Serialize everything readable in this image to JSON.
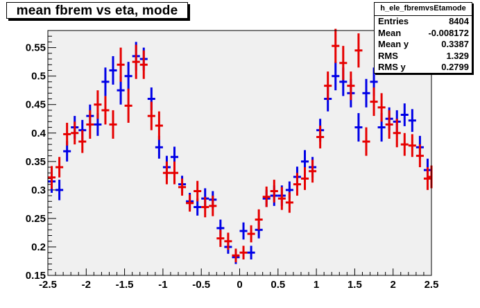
{
  "title": "mean fbrem vs eta, mode",
  "stats": {
    "name": "h_ele_fbremvsEtamode",
    "rows": [
      {
        "key": "Entries",
        "value": "8404"
      },
      {
        "key": "Mean",
        "value": "-0.008172"
      },
      {
        "key": "Mean y",
        "value": "0.3387"
      },
      {
        "key": "RMS",
        "value": "1.329"
      },
      {
        "key": "RMS y",
        "value": "0.2799"
      }
    ]
  },
  "colors": {
    "frame_bg": "#f0f0f0",
    "blue": "#0000e6",
    "red": "#e60000"
  },
  "chart_data": {
    "type": "scatter",
    "title": "mean fbrem vs eta, mode",
    "xlabel": "",
    "ylabel": "",
    "xlim": [
      -2.5,
      2.5
    ],
    "ylim": [
      0.15,
      0.58
    ],
    "x_ticks": [
      "-2.5",
      "-2",
      "-1.5",
      "-1",
      "-0.5",
      "0",
      "0.5",
      "1",
      "1.5",
      "2",
      "2.5"
    ],
    "y_ticks": [
      "0.15",
      "0.2",
      "0.25",
      "0.3",
      "0.35",
      "0.4",
      "0.45",
      "0.5",
      "0.55"
    ],
    "bin_half_width": 0.05,
    "series": [
      {
        "color": "#0000e6",
        "points": [
          {
            "x": -2.45,
            "y": 0.315,
            "err": 0.02
          },
          {
            "x": -2.35,
            "y": 0.3,
            "err": 0.018
          },
          {
            "x": -2.25,
            "y": 0.368,
            "err": 0.018
          },
          {
            "x": -2.15,
            "y": 0.41,
            "err": 0.02
          },
          {
            "x": -2.05,
            "y": 0.405,
            "err": 0.018
          },
          {
            "x": -1.95,
            "y": 0.43,
            "err": 0.02
          },
          {
            "x": -1.85,
            "y": 0.415,
            "err": 0.02
          },
          {
            "x": -1.75,
            "y": 0.49,
            "err": 0.025
          },
          {
            "x": -1.65,
            "y": 0.51,
            "err": 0.025
          },
          {
            "x": -1.55,
            "y": 0.475,
            "err": 0.025
          },
          {
            "x": -1.45,
            "y": 0.5,
            "err": 0.025
          },
          {
            "x": -1.35,
            "y": 0.535,
            "err": 0.025
          },
          {
            "x": -1.25,
            "y": 0.53,
            "err": 0.02
          },
          {
            "x": -1.15,
            "y": 0.46,
            "err": 0.02
          },
          {
            "x": -1.05,
            "y": 0.375,
            "err": 0.02
          },
          {
            "x": -0.95,
            "y": 0.34,
            "err": 0.02
          },
          {
            "x": -0.85,
            "y": 0.358,
            "err": 0.018
          },
          {
            "x": -0.75,
            "y": 0.31,
            "err": 0.015
          },
          {
            "x": -0.65,
            "y": 0.28,
            "err": 0.015
          },
          {
            "x": -0.55,
            "y": 0.27,
            "err": 0.015
          },
          {
            "x": -0.45,
            "y": 0.285,
            "err": 0.018
          },
          {
            "x": -0.35,
            "y": 0.283,
            "err": 0.015
          },
          {
            "x": -0.25,
            "y": 0.233,
            "err": 0.015
          },
          {
            "x": -0.15,
            "y": 0.2,
            "err": 0.012
          },
          {
            "x": -0.05,
            "y": 0.182,
            "err": 0.012
          },
          {
            "x": 0.05,
            "y": 0.228,
            "err": 0.015
          },
          {
            "x": 0.15,
            "y": 0.19,
            "err": 0.012
          },
          {
            "x": 0.25,
            "y": 0.23,
            "err": 0.015
          },
          {
            "x": 0.35,
            "y": 0.285,
            "err": 0.015
          },
          {
            "x": 0.45,
            "y": 0.29,
            "err": 0.018
          },
          {
            "x": 0.55,
            "y": 0.29,
            "err": 0.018
          },
          {
            "x": 0.65,
            "y": 0.3,
            "err": 0.015
          },
          {
            "x": 0.75,
            "y": 0.323,
            "err": 0.018
          },
          {
            "x": 0.85,
            "y": 0.35,
            "err": 0.02
          },
          {
            "x": 0.95,
            "y": 0.34,
            "err": 0.018
          },
          {
            "x": 1.05,
            "y": 0.405,
            "err": 0.02
          },
          {
            "x": 1.15,
            "y": 0.46,
            "err": 0.022
          },
          {
            "x": 1.25,
            "y": 0.5,
            "err": 0.025
          },
          {
            "x": 1.35,
            "y": 0.49,
            "err": 0.025
          },
          {
            "x": 1.45,
            "y": 0.47,
            "err": 0.025
          },
          {
            "x": 1.55,
            "y": 0.41,
            "err": 0.025
          },
          {
            "x": 1.65,
            "y": 0.47,
            "err": 0.025
          },
          {
            "x": 1.75,
            "y": 0.49,
            "err": 0.025
          },
          {
            "x": 1.85,
            "y": 0.41,
            "err": 0.025
          },
          {
            "x": 1.95,
            "y": 0.425,
            "err": 0.02
          },
          {
            "x": 2.05,
            "y": 0.42,
            "err": 0.02
          },
          {
            "x": 2.15,
            "y": 0.432,
            "err": 0.02
          },
          {
            "x": 2.25,
            "y": 0.422,
            "err": 0.02
          },
          {
            "x": 2.35,
            "y": 0.375,
            "err": 0.02
          },
          {
            "x": 2.45,
            "y": 0.335,
            "err": 0.02
          }
        ]
      },
      {
        "color": "#e60000",
        "points": [
          {
            "x": -2.45,
            "y": 0.322,
            "err": 0.02
          },
          {
            "x": -2.35,
            "y": 0.34,
            "err": 0.018
          },
          {
            "x": -2.25,
            "y": 0.398,
            "err": 0.02
          },
          {
            "x": -2.15,
            "y": 0.4,
            "err": 0.02
          },
          {
            "x": -2.05,
            "y": 0.385,
            "err": 0.02
          },
          {
            "x": -1.95,
            "y": 0.415,
            "err": 0.025
          },
          {
            "x": -1.85,
            "y": 0.45,
            "err": 0.025
          },
          {
            "x": -1.75,
            "y": 0.44,
            "err": 0.025
          },
          {
            "x": -1.65,
            "y": 0.415,
            "err": 0.025
          },
          {
            "x": -1.55,
            "y": 0.52,
            "err": 0.03
          },
          {
            "x": -1.45,
            "y": 0.448,
            "err": 0.03
          },
          {
            "x": -1.35,
            "y": 0.525,
            "err": 0.03
          },
          {
            "x": -1.25,
            "y": 0.52,
            "err": 0.025
          },
          {
            "x": -1.15,
            "y": 0.43,
            "err": 0.025
          },
          {
            "x": -1.05,
            "y": 0.413,
            "err": 0.025
          },
          {
            "x": -0.95,
            "y": 0.33,
            "err": 0.02
          },
          {
            "x": -0.85,
            "y": 0.33,
            "err": 0.02
          },
          {
            "x": -0.75,
            "y": 0.305,
            "err": 0.015
          },
          {
            "x": -0.65,
            "y": 0.277,
            "err": 0.015
          },
          {
            "x": -0.55,
            "y": 0.298,
            "err": 0.018
          },
          {
            "x": -0.45,
            "y": 0.27,
            "err": 0.018
          },
          {
            "x": -0.35,
            "y": 0.272,
            "err": 0.018
          },
          {
            "x": -0.25,
            "y": 0.215,
            "err": 0.015
          },
          {
            "x": -0.15,
            "y": 0.21,
            "err": 0.015
          },
          {
            "x": -0.05,
            "y": 0.185,
            "err": 0.012
          },
          {
            "x": 0.05,
            "y": 0.19,
            "err": 0.012
          },
          {
            "x": 0.15,
            "y": 0.223,
            "err": 0.015
          },
          {
            "x": 0.25,
            "y": 0.248,
            "err": 0.018
          },
          {
            "x": 0.35,
            "y": 0.288,
            "err": 0.018
          },
          {
            "x": 0.45,
            "y": 0.298,
            "err": 0.02
          },
          {
            "x": 0.55,
            "y": 0.285,
            "err": 0.02
          },
          {
            "x": 0.65,
            "y": 0.278,
            "err": 0.018
          },
          {
            "x": 0.75,
            "y": 0.31,
            "err": 0.02
          },
          {
            "x": 0.85,
            "y": 0.32,
            "err": 0.02
          },
          {
            "x": 0.95,
            "y": 0.333,
            "err": 0.02
          },
          {
            "x": 1.05,
            "y": 0.393,
            "err": 0.02
          },
          {
            "x": 1.15,
            "y": 0.483,
            "err": 0.025
          },
          {
            "x": 1.25,
            "y": 0.553,
            "err": 0.03
          },
          {
            "x": 1.35,
            "y": 0.523,
            "err": 0.03
          },
          {
            "x": 1.45,
            "y": 0.483,
            "err": 0.025
          },
          {
            "x": 1.55,
            "y": 0.545,
            "err": 0.03
          },
          {
            "x": 1.65,
            "y": 0.385,
            "err": 0.025
          },
          {
            "x": 1.75,
            "y": 0.455,
            "err": 0.025
          },
          {
            "x": 1.85,
            "y": 0.445,
            "err": 0.025
          },
          {
            "x": 1.95,
            "y": 0.415,
            "err": 0.025
          },
          {
            "x": 2.05,
            "y": 0.4,
            "err": 0.025
          },
          {
            "x": 2.15,
            "y": 0.38,
            "err": 0.02
          },
          {
            "x": 2.25,
            "y": 0.378,
            "err": 0.02
          },
          {
            "x": 2.35,
            "y": 0.36,
            "err": 0.02
          },
          {
            "x": 2.45,
            "y": 0.32,
            "err": 0.02
          },
          {
            "x": 2.5,
            "y": 0.323,
            "err": 0.02
          }
        ]
      }
    ]
  }
}
